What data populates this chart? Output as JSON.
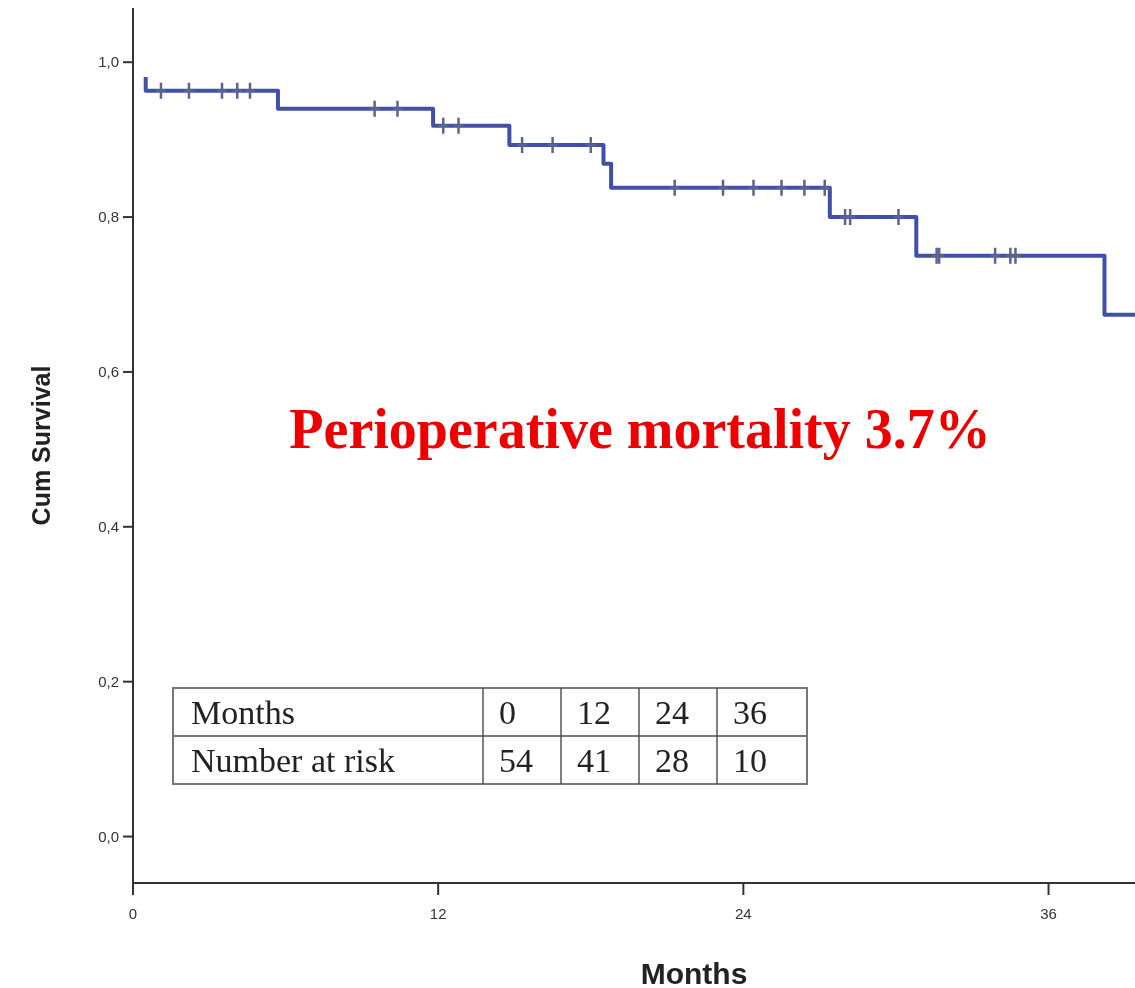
{
  "chart_data": {
    "type": "step",
    "xlabel": "Months",
    "ylabel": "Cum Survival",
    "xlim": [
      0,
      39.4
    ],
    "ylim": [
      -0.06,
      1.07
    ],
    "xticks": [
      0,
      12,
      24,
      36
    ],
    "yticks": [
      {
        "value": 0,
        "label": "0,0"
      },
      {
        "value": 0.2,
        "label": "0,2"
      },
      {
        "value": 0.4,
        "label": "0,4"
      },
      {
        "value": 0.6,
        "label": "0,6"
      },
      {
        "value": 0.8,
        "label": "0,8"
      },
      {
        "value": 1,
        "label": "1,0"
      }
    ],
    "grid": false,
    "series": [
      {
        "type": "step",
        "color": "#4050a8",
        "x": [
          0.5,
          0.5,
          5.7,
          11.8,
          14.8,
          18.5,
          18.8,
          27.4,
          30.8,
          38.2,
          39.4
        ],
        "values": [
          0.981,
          0.963,
          0.94,
          0.918,
          0.893,
          0.869,
          0.838,
          0.8,
          0.75,
          0.674,
          0.674
        ]
      },
      {
        "type": "scatter",
        "marker": "cross",
        "color": "#5a6490",
        "x": [
          1.1,
          2.2,
          3.5,
          4.1,
          4.6,
          9.5,
          10.4,
          12.2,
          12.8,
          15.3,
          16.5,
          18.0,
          21.3,
          23.2,
          24.4,
          25.5,
          26.4,
          27.2,
          28.0,
          28.2,
          30.1,
          31.6,
          31.7,
          33.9,
          34.5,
          34.7
        ],
        "values": [
          0.963,
          0.963,
          0.963,
          0.963,
          0.963,
          0.94,
          0.94,
          0.918,
          0.918,
          0.893,
          0.893,
          0.893,
          0.838,
          0.838,
          0.838,
          0.838,
          0.838,
          0.838,
          0.8,
          0.8,
          0.8,
          0.75,
          0.75,
          0.75,
          0.75,
          0.75
        ]
      }
    ],
    "annotations": [
      "Perioperative mortality 3.7%",
      "Months",
      "0",
      "12",
      "24",
      "36",
      "Number at risk",
      "54",
      "41",
      "28",
      "10"
    ]
  }
}
